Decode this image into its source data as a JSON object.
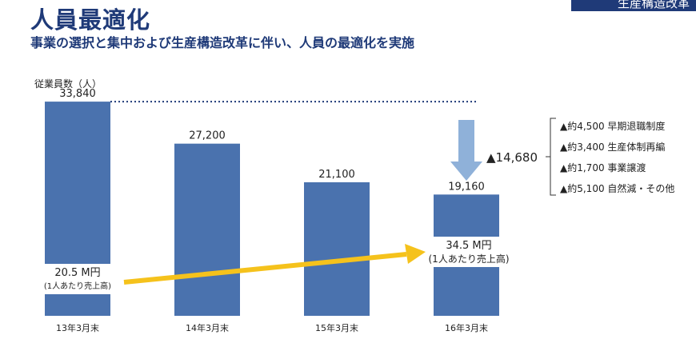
{
  "header": {
    "title": "人員最適化",
    "subtitle": "事業の選択と集中および生産構造改革に伴い、人員の最適化を実施",
    "corner_tab": "生産構造改革"
  },
  "colors": {
    "bar": "#4a72ae",
    "accent_arrow": "#f5c21c",
    "down_arrow": "#8fb1d9",
    "title": "#1f3a78"
  },
  "chart_data": {
    "type": "bar",
    "ylabel": "従業員数（人）",
    "categories": [
      "13年3月末",
      "14年3月末",
      "15年3月末",
      "16年3月末"
    ],
    "values": [
      33840,
      27200,
      21100,
      19160
    ],
    "value_labels": [
      "33,840",
      "27,200",
      "21,100",
      "19,160"
    ],
    "ylim": [
      0,
      36000
    ],
    "grid": false,
    "reference_line": {
      "value": 33840,
      "style": "dotted"
    },
    "reduction": {
      "value": 14680,
      "label": "▲14,680"
    },
    "reduction_breakdown": [
      "▲約4,500 早期退職制度",
      "▲約3,400 生産体制再編",
      "▲約1,700 事業譲渡",
      "▲約5,100 自然減・その他"
    ],
    "sales_per_employee": {
      "start": {
        "value": "20.5 M円",
        "note": "(1人あたり売上高)"
      },
      "end": {
        "value": "34.5 M円",
        "note": "(1人あたり売上高)"
      }
    }
  }
}
